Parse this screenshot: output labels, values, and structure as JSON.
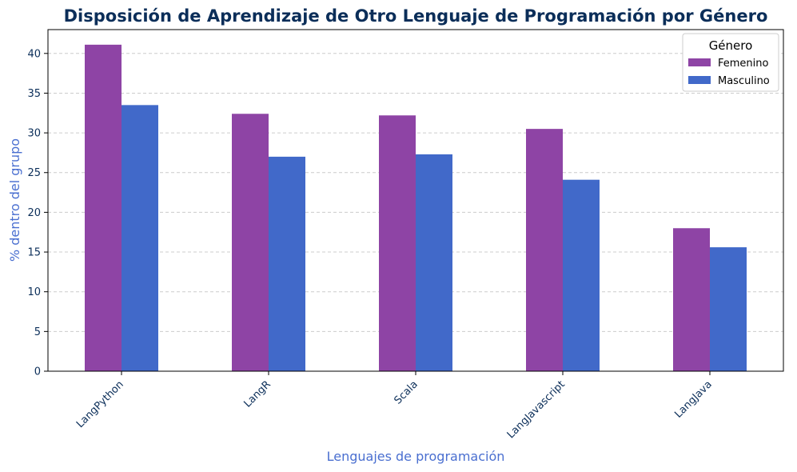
{
  "chart_data": {
    "type": "bar",
    "title": "Disposición de Aprendizaje de Otro Lenguaje de Programación por Género",
    "xlabel": "Lenguajes de programación",
    "ylabel": "% dentro del grupo",
    "categories": [
      "LangPython",
      "LangR",
      "Scala",
      "LangJavascript",
      "LangJava"
    ],
    "series": [
      {
        "name": "Femenino",
        "color": "#8e44a5",
        "values": [
          41.1,
          32.4,
          32.2,
          30.5,
          18.0
        ]
      },
      {
        "name": "Masculino",
        "color": "#4169c9",
        "values": [
          33.5,
          27.0,
          27.3,
          24.1,
          15.6
        ]
      }
    ],
    "ylim": [
      0,
      43
    ],
    "yticks": [
      0,
      5,
      10,
      15,
      20,
      25,
      30,
      35,
      40
    ],
    "grid": "horizontal dashed",
    "legend": {
      "title": "Género",
      "placement": "top-right"
    }
  }
}
